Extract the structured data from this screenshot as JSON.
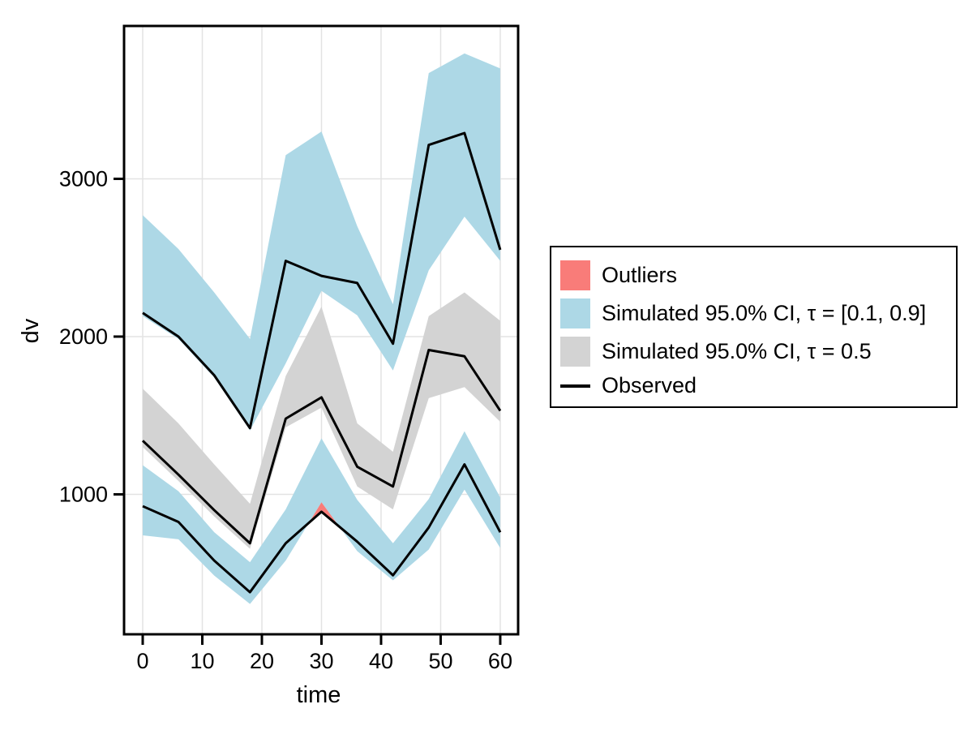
{
  "chart_data": {
    "type": "line",
    "title": "",
    "xlabel": "time",
    "ylabel": "dv",
    "x": [
      0,
      6,
      12,
      18,
      24,
      30,
      36,
      42,
      48,
      54,
      60
    ],
    "xticks": [
      0,
      10,
      20,
      30,
      40,
      50,
      60
    ],
    "yticks": [
      1000,
      2000,
      3000
    ],
    "xlim": [
      -3.13,
      63.0
    ],
    "ylim": [
      113,
      3969
    ],
    "grid": true,
    "legend_position": "right",
    "style": {
      "background": "#FFFFFF",
      "grid_color": "#E3E3E3",
      "frame_color": "#000000",
      "line_color": "#000000",
      "blue_band_color": "#ADD8E6",
      "gray_band_color": "#D3D3D3",
      "outlier_color": "#F97C79"
    },
    "bands": [
      {
        "name": "simulated-ci-upper-quantile",
        "color": "#ADD8E6",
        "upper": [
          2770,
          2555,
          2280,
          1985,
          3150,
          3300,
          2700,
          2205,
          3670,
          3795,
          3700
        ],
        "lower": [
          2130,
          1985,
          1740,
          1405,
          1830,
          2290,
          2135,
          1785,
          2420,
          2760,
          2480
        ]
      },
      {
        "name": "simulated-ci-median",
        "color": "#D3D3D3",
        "upper": [
          1670,
          1450,
          1190,
          940,
          1750,
          2190,
          1450,
          1270,
          2130,
          2280,
          2100
        ],
        "lower": [
          1300,
          1085,
          860,
          655,
          1425,
          1550,
          1050,
          905,
          1610,
          1680,
          1460
        ]
      },
      {
        "name": "simulated-ci-lower-quantile",
        "color": "#ADD8E6",
        "upper": [
          1185,
          1020,
          760,
          570,
          905,
          1355,
          965,
          690,
          970,
          1400,
          980
        ],
        "lower": [
          740,
          715,
          485,
          305,
          580,
          950,
          640,
          455,
          650,
          1030,
          660
        ]
      }
    ],
    "series": [
      {
        "name": "observed-90th-percentile",
        "values": [
          2150,
          2000,
          1755,
          1420,
          2480,
          2385,
          2340,
          1955,
          3215,
          3290,
          2550
        ]
      },
      {
        "name": "observed-median",
        "values": [
          1340,
          1125,
          900,
          690,
          1480,
          1615,
          1175,
          1050,
          1915,
          1875,
          1530
        ]
      },
      {
        "name": "observed-10th-percentile",
        "values": [
          925,
          825,
          580,
          380,
          690,
          890,
          700,
          487,
          790,
          1190,
          760
        ]
      }
    ],
    "outliers": {
      "color": "#F97C79",
      "polygon": [
        [
          27.9,
          820
        ],
        [
          30,
          950
        ],
        [
          33,
          795
        ],
        [
          30,
          890
        ]
      ]
    },
    "legend": {
      "items": [
        {
          "type": "swatch",
          "color": "#F97C79",
          "label": "Outliers"
        },
        {
          "type": "swatch",
          "color": "#ADD8E6",
          "label": "Simulated 95.0% CI, τ = [0.1, 0.9]"
        },
        {
          "type": "swatch",
          "color": "#D3D3D3",
          "label": "Simulated 95.0% CI, τ = 0.5"
        },
        {
          "type": "line",
          "color": "#000000",
          "label": "Observed"
        }
      ]
    }
  }
}
